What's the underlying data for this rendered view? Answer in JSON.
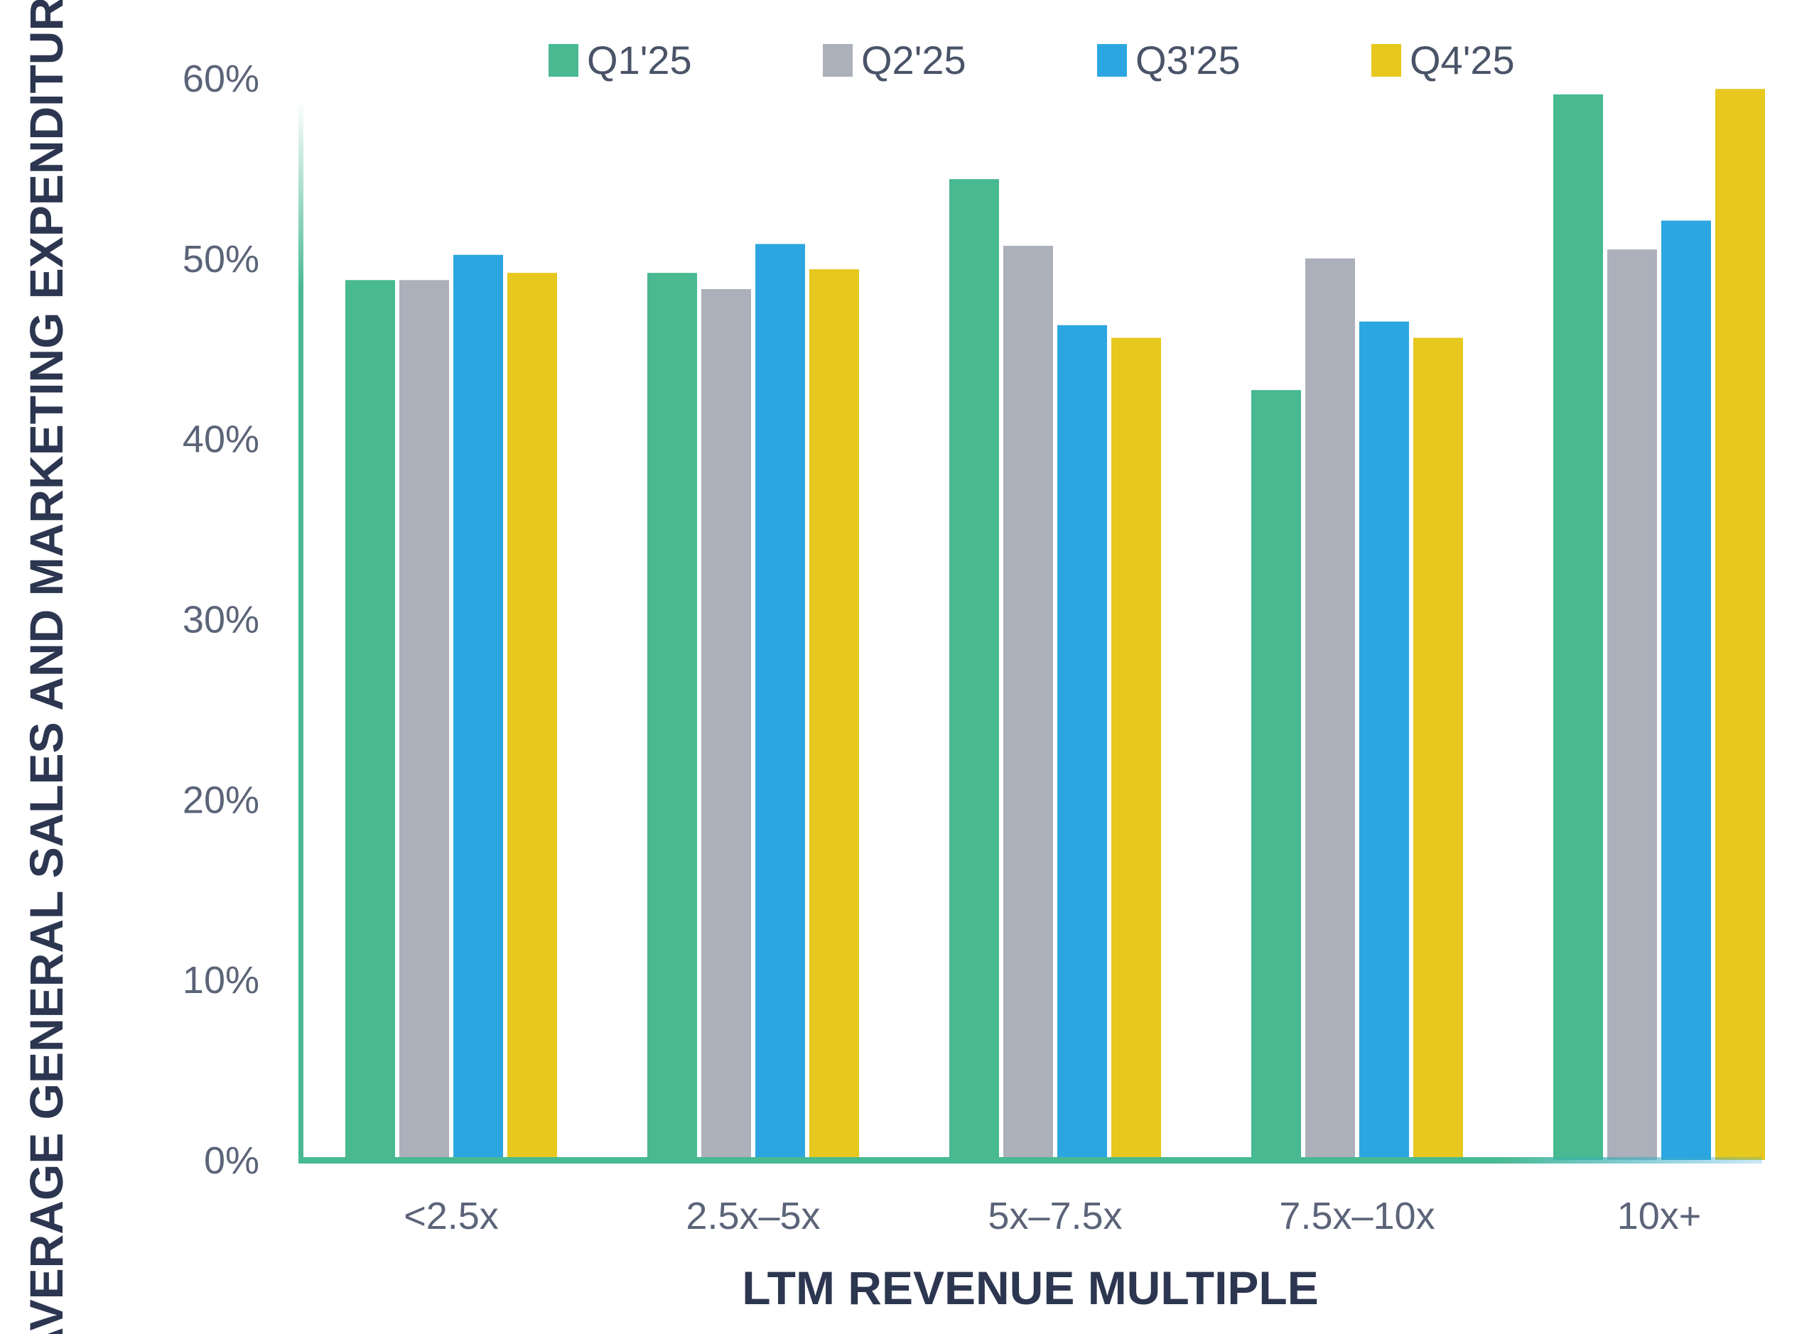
{
  "chart_data": {
    "type": "bar",
    "title": "",
    "xlabel": "LTM REVENUE MULTIPLE",
    "ylabel": "AVERAGE GENERAL SALES AND MARKETING EXPENDITURE",
    "categories": [
      "<2.5x",
      "2.5x–5x",
      "5x–7.5x",
      "7.5x–10x",
      "10x+"
    ],
    "ylim": [
      0,
      60
    ],
    "yticks": [
      0,
      10,
      20,
      30,
      40,
      50,
      60
    ],
    "ytick_labels": [
      "0%",
      "10%",
      "20%",
      "30%",
      "40%",
      "50%",
      "60%"
    ],
    "legend_position": "top",
    "grid": false,
    "series": [
      {
        "name": "Q1'25",
        "color": "#48b991",
        "values": [
          48.8,
          49.2,
          54.4,
          42.7,
          59.1
        ]
      },
      {
        "name": "Q2'25",
        "color": "#abb0bb",
        "values": [
          48.8,
          48.3,
          50.7,
          50.0,
          50.5
        ]
      },
      {
        "name": "Q3'25",
        "color": "#2ca6e0",
        "values": [
          50.2,
          50.8,
          46.3,
          46.5,
          52.1
        ]
      },
      {
        "name": "Q4'25",
        "color": "#e6c81e",
        "values": [
          49.2,
          49.4,
          45.6,
          45.6,
          59.4
        ]
      }
    ],
    "axis_color": "#48b991"
  }
}
